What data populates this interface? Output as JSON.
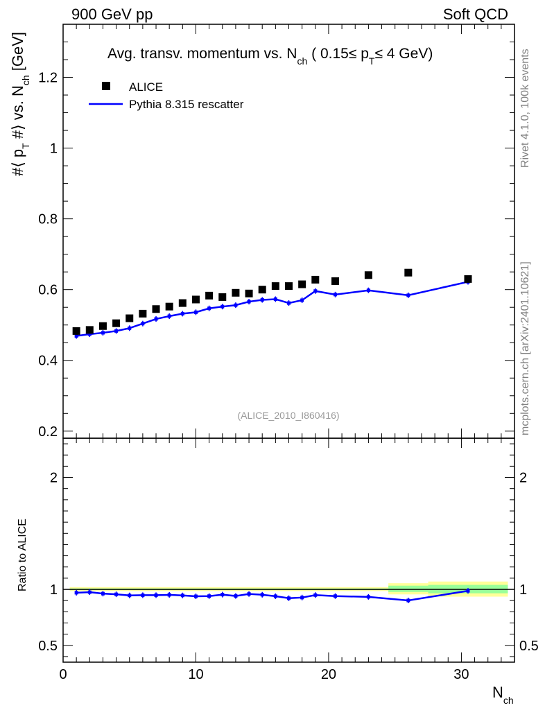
{
  "header": {
    "left": "900 GeV pp",
    "right": "Soft QCD"
  },
  "side_labels": {
    "rivet": "Rivet 4.1.0,  100k events",
    "mcplots": "mcplots.cern.ch [arXiv:2401.10621]"
  },
  "chart_data": [
    {
      "type": "scatter",
      "title_parts": {
        "main": "Avg. transv. momentum vs. N",
        "main_sub": "ch",
        "open": " ( 0.15",
        "le1": "≤ p",
        "pt_sub": "T",
        "le2": "≤ 4 GeV)"
      },
      "ylabel_parts": {
        "a": "#⟨ p",
        "a_sub": "T",
        "b": " #⟩ vs. N",
        "b_sub": "ch",
        "c": " [GeV]"
      },
      "watermark": "(ALICE_2010_I860416)",
      "xlim": [
        0,
        34
      ],
      "ylim": [
        0.18,
        1.35
      ],
      "yticks": [
        "0.2",
        "0.4",
        "0.6",
        "0.8",
        "1",
        "1.2"
      ],
      "legend": {
        "placement": "top-left",
        "data_label": "ALICE",
        "mc_label": "Pythia 8.315 rescatter"
      },
      "series": [
        {
          "name": "ALICE",
          "color": "#000000",
          "x": [
            1,
            2,
            3,
            4,
            5,
            6,
            7,
            8,
            9,
            10,
            11,
            12,
            13,
            14,
            15,
            16,
            17,
            18,
            19,
            20.5,
            23,
            26,
            30.5
          ],
          "y": [
            0.483,
            0.486,
            0.497,
            0.505,
            0.519,
            0.532,
            0.545,
            0.552,
            0.562,
            0.572,
            0.583,
            0.579,
            0.591,
            0.589,
            0.6,
            0.61,
            0.61,
            0.615,
            0.628,
            0.624,
            0.641,
            0.648,
            0.63
          ]
        },
        {
          "name": "Pythia 8.315 rescatter",
          "color": "#0000ff",
          "x": [
            1,
            2,
            3,
            4,
            5,
            6,
            7,
            8,
            9,
            10,
            11,
            12,
            13,
            14,
            15,
            16,
            17,
            18,
            19,
            20.5,
            23,
            26,
            30.5
          ],
          "y": [
            0.469,
            0.474,
            0.478,
            0.483,
            0.491,
            0.504,
            0.517,
            0.525,
            0.532,
            0.536,
            0.547,
            0.552,
            0.556,
            0.566,
            0.571,
            0.573,
            0.562,
            0.57,
            0.596,
            0.586,
            0.598,
            0.584,
            0.622
          ]
        }
      ]
    },
    {
      "type": "line",
      "ylabel": "Ratio to ALICE",
      "xlabel_main": "N",
      "xlabel_sub": "ch",
      "xlim": [
        0,
        34
      ],
      "ylim": [
        0.35,
        2.35
      ],
      "xticks": [
        "0",
        "10",
        "20",
        "30"
      ],
      "yticks": [
        "0.5",
        "1",
        "2"
      ],
      "bands": {
        "yellow_color": "#ffff99",
        "green_color": "#99ff99",
        "bins": [
          {
            "x0": 0.5,
            "x1": 24.5,
            "y_lo": 0.985,
            "y_hi": 1.02,
            "g_lo": 0.995,
            "g_hi": 1.008
          },
          {
            "x0": 24.5,
            "x1": 27.5,
            "y_lo": 0.955,
            "y_hi": 1.055,
            "g_lo": 0.977,
            "g_hi": 1.033
          },
          {
            "x0": 27.5,
            "x1": 33.5,
            "y_lo": 0.935,
            "y_hi": 1.07,
            "g_lo": 0.965,
            "g_hi": 1.04
          }
        ]
      },
      "series": [
        {
          "name": "Pythia 8.315 rescatter / ALICE",
          "color": "#0000ff",
          "x": [
            1,
            2,
            3,
            4,
            5,
            6,
            7,
            8,
            9,
            10,
            11,
            12,
            13,
            14,
            15,
            16,
            17,
            18,
            19,
            20.5,
            23,
            26,
            30.5
          ],
          "y": [
            0.97,
            0.975,
            0.962,
            0.956,
            0.946,
            0.948,
            0.948,
            0.951,
            0.946,
            0.938,
            0.94,
            0.953,
            0.941,
            0.959,
            0.952,
            0.939,
            0.921,
            0.927,
            0.949,
            0.94,
            0.933,
            0.901,
            0.987
          ]
        }
      ]
    }
  ]
}
